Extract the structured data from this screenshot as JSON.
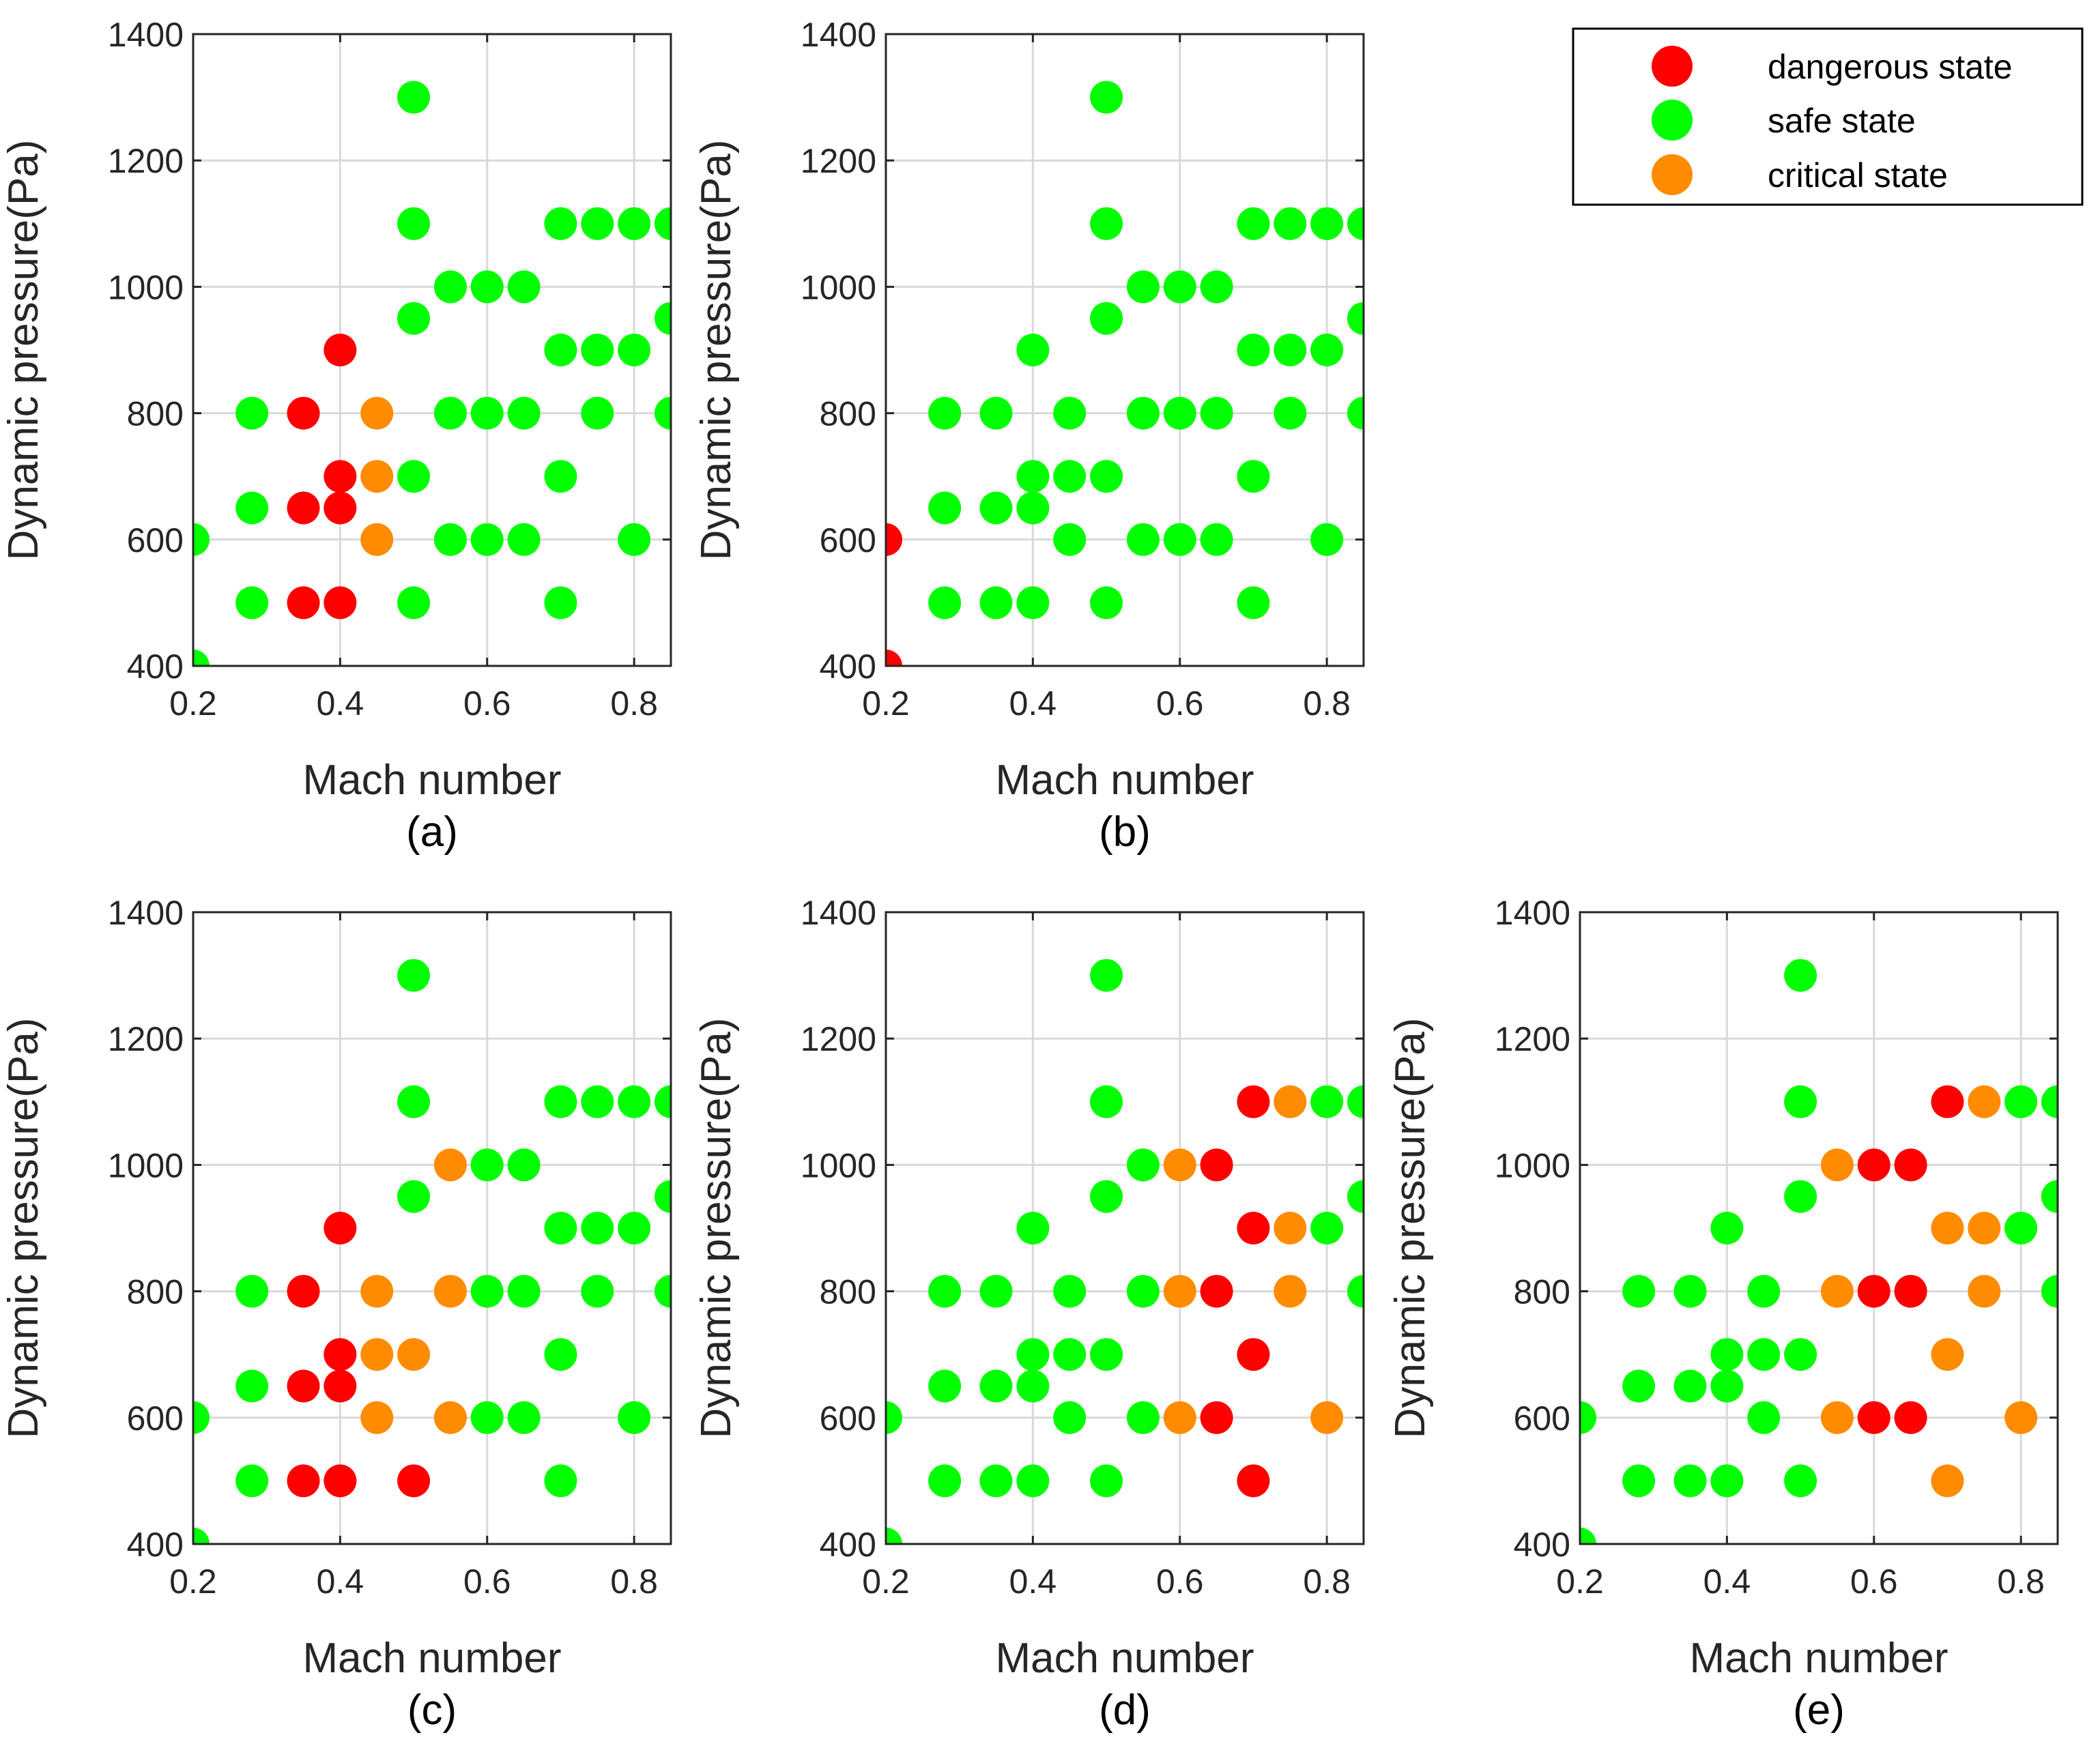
{
  "legend": {
    "items": [
      {
        "label": "dangerous state",
        "color": "#ff0000"
      },
      {
        "label": "safe state",
        "color": "#00ff00"
      },
      {
        "label": "critical state",
        "color": "#ff8c00"
      }
    ]
  },
  "colors": {
    "dangerous": "#ff0000",
    "safe": "#00ff00",
    "critical": "#ff8c00"
  },
  "chart_data": [
    {
      "type": "scatter",
      "panel": "(a)",
      "xlabel": "Mach number",
      "ylabel": "Dynamic pressure(Pa)",
      "xlim": [
        0.2,
        0.85
      ],
      "ylim": [
        400,
        1400
      ],
      "xticks": [
        "0.2",
        "0.4",
        "0.6",
        "0.8"
      ],
      "yticks": [
        "400",
        "600",
        "800",
        "1000",
        "1200",
        "1400"
      ],
      "points": [
        [
          0.2,
          400,
          "s"
        ],
        [
          0.2,
          600,
          "s"
        ],
        [
          0.28,
          500,
          "s"
        ],
        [
          0.28,
          650,
          "s"
        ],
        [
          0.28,
          800,
          "s"
        ],
        [
          0.35,
          500,
          "d"
        ],
        [
          0.35,
          650,
          "d"
        ],
        [
          0.35,
          800,
          "d"
        ],
        [
          0.4,
          500,
          "d"
        ],
        [
          0.4,
          650,
          "d"
        ],
        [
          0.4,
          700,
          "d"
        ],
        [
          0.4,
          900,
          "d"
        ],
        [
          0.45,
          600,
          "c"
        ],
        [
          0.45,
          700,
          "c"
        ],
        [
          0.45,
          800,
          "c"
        ],
        [
          0.5,
          500,
          "s"
        ],
        [
          0.5,
          700,
          "s"
        ],
        [
          0.5,
          950,
          "s"
        ],
        [
          0.5,
          1100,
          "s"
        ],
        [
          0.5,
          1300,
          "s"
        ],
        [
          0.55,
          600,
          "s"
        ],
        [
          0.55,
          800,
          "s"
        ],
        [
          0.55,
          1000,
          "s"
        ],
        [
          0.6,
          600,
          "s"
        ],
        [
          0.6,
          800,
          "s"
        ],
        [
          0.6,
          1000,
          "s"
        ],
        [
          0.65,
          600,
          "s"
        ],
        [
          0.65,
          800,
          "s"
        ],
        [
          0.65,
          1000,
          "s"
        ],
        [
          0.7,
          500,
          "s"
        ],
        [
          0.7,
          700,
          "s"
        ],
        [
          0.7,
          900,
          "s"
        ],
        [
          0.7,
          1100,
          "s"
        ],
        [
          0.75,
          800,
          "s"
        ],
        [
          0.75,
          900,
          "s"
        ],
        [
          0.75,
          1100,
          "s"
        ],
        [
          0.8,
          600,
          "s"
        ],
        [
          0.8,
          900,
          "s"
        ],
        [
          0.8,
          1100,
          "s"
        ],
        [
          0.85,
          800,
          "s"
        ],
        [
          0.85,
          950,
          "s"
        ],
        [
          0.85,
          1100,
          "s"
        ]
      ]
    },
    {
      "type": "scatter",
      "panel": "(b)",
      "xlabel": "Mach number",
      "ylabel": "Dynamic pressure(Pa)",
      "xlim": [
        0.2,
        0.85
      ],
      "ylim": [
        400,
        1400
      ],
      "xticks": [
        "0.2",
        "0.4",
        "0.6",
        "0.8"
      ],
      "yticks": [
        "400",
        "600",
        "800",
        "1000",
        "1200",
        "1400"
      ],
      "points": [
        [
          0.2,
          400,
          "d"
        ],
        [
          0.2,
          600,
          "d"
        ],
        [
          0.28,
          500,
          "s"
        ],
        [
          0.28,
          650,
          "s"
        ],
        [
          0.28,
          800,
          "s"
        ],
        [
          0.35,
          500,
          "s"
        ],
        [
          0.35,
          650,
          "s"
        ],
        [
          0.35,
          800,
          "s"
        ],
        [
          0.4,
          500,
          "s"
        ],
        [
          0.4,
          650,
          "s"
        ],
        [
          0.4,
          700,
          "s"
        ],
        [
          0.4,
          900,
          "s"
        ],
        [
          0.45,
          600,
          "s"
        ],
        [
          0.45,
          700,
          "s"
        ],
        [
          0.45,
          800,
          "s"
        ],
        [
          0.5,
          500,
          "s"
        ],
        [
          0.5,
          700,
          "s"
        ],
        [
          0.5,
          950,
          "s"
        ],
        [
          0.5,
          1100,
          "s"
        ],
        [
          0.5,
          1300,
          "s"
        ],
        [
          0.55,
          600,
          "s"
        ],
        [
          0.55,
          800,
          "s"
        ],
        [
          0.55,
          1000,
          "s"
        ],
        [
          0.6,
          600,
          "s"
        ],
        [
          0.6,
          800,
          "s"
        ],
        [
          0.6,
          1000,
          "s"
        ],
        [
          0.65,
          600,
          "s"
        ],
        [
          0.65,
          800,
          "s"
        ],
        [
          0.65,
          1000,
          "s"
        ],
        [
          0.7,
          500,
          "s"
        ],
        [
          0.7,
          700,
          "s"
        ],
        [
          0.7,
          900,
          "s"
        ],
        [
          0.7,
          1100,
          "s"
        ],
        [
          0.75,
          800,
          "s"
        ],
        [
          0.75,
          900,
          "s"
        ],
        [
          0.75,
          1100,
          "s"
        ],
        [
          0.8,
          600,
          "s"
        ],
        [
          0.8,
          900,
          "s"
        ],
        [
          0.8,
          1100,
          "s"
        ],
        [
          0.85,
          800,
          "s"
        ],
        [
          0.85,
          950,
          "s"
        ],
        [
          0.85,
          1100,
          "s"
        ]
      ]
    },
    {
      "type": "scatter",
      "panel": "(c)",
      "xlabel": "Mach number",
      "ylabel": "Dynamic pressure(Pa)",
      "xlim": [
        0.2,
        0.85
      ],
      "ylim": [
        400,
        1400
      ],
      "xticks": [
        "0.2",
        "0.4",
        "0.6",
        "0.8"
      ],
      "yticks": [
        "400",
        "600",
        "800",
        "1000",
        "1200",
        "1400"
      ],
      "points": [
        [
          0.2,
          400,
          "s"
        ],
        [
          0.2,
          600,
          "s"
        ],
        [
          0.28,
          500,
          "s"
        ],
        [
          0.28,
          650,
          "s"
        ],
        [
          0.28,
          800,
          "s"
        ],
        [
          0.35,
          500,
          "d"
        ],
        [
          0.35,
          650,
          "d"
        ],
        [
          0.35,
          800,
          "d"
        ],
        [
          0.4,
          500,
          "d"
        ],
        [
          0.4,
          650,
          "d"
        ],
        [
          0.4,
          700,
          "d"
        ],
        [
          0.4,
          900,
          "d"
        ],
        [
          0.45,
          600,
          "c"
        ],
        [
          0.45,
          700,
          "c"
        ],
        [
          0.45,
          800,
          "c"
        ],
        [
          0.5,
          500,
          "d"
        ],
        [
          0.5,
          700,
          "c"
        ],
        [
          0.5,
          950,
          "s"
        ],
        [
          0.5,
          1100,
          "s"
        ],
        [
          0.5,
          1300,
          "s"
        ],
        [
          0.55,
          600,
          "c"
        ],
        [
          0.55,
          800,
          "c"
        ],
        [
          0.55,
          1000,
          "c"
        ],
        [
          0.6,
          600,
          "s"
        ],
        [
          0.6,
          800,
          "s"
        ],
        [
          0.6,
          1000,
          "s"
        ],
        [
          0.65,
          600,
          "s"
        ],
        [
          0.65,
          800,
          "s"
        ],
        [
          0.65,
          1000,
          "s"
        ],
        [
          0.7,
          500,
          "s"
        ],
        [
          0.7,
          700,
          "s"
        ],
        [
          0.7,
          900,
          "s"
        ],
        [
          0.7,
          1100,
          "s"
        ],
        [
          0.75,
          800,
          "s"
        ],
        [
          0.75,
          900,
          "s"
        ],
        [
          0.75,
          1100,
          "s"
        ],
        [
          0.8,
          600,
          "s"
        ],
        [
          0.8,
          900,
          "s"
        ],
        [
          0.8,
          1100,
          "s"
        ],
        [
          0.85,
          800,
          "s"
        ],
        [
          0.85,
          950,
          "s"
        ],
        [
          0.85,
          1100,
          "s"
        ]
      ]
    },
    {
      "type": "scatter",
      "panel": "(d)",
      "xlabel": "Mach number",
      "ylabel": "Dynamic pressure(Pa)",
      "xlim": [
        0.2,
        0.85
      ],
      "ylim": [
        400,
        1400
      ],
      "xticks": [
        "0.2",
        "0.4",
        "0.6",
        "0.8"
      ],
      "yticks": [
        "400",
        "600",
        "800",
        "1000",
        "1200",
        "1400"
      ],
      "points": [
        [
          0.2,
          400,
          "s"
        ],
        [
          0.2,
          600,
          "s"
        ],
        [
          0.28,
          500,
          "s"
        ],
        [
          0.28,
          650,
          "s"
        ],
        [
          0.28,
          800,
          "s"
        ],
        [
          0.35,
          500,
          "s"
        ],
        [
          0.35,
          650,
          "s"
        ],
        [
          0.35,
          800,
          "s"
        ],
        [
          0.4,
          500,
          "s"
        ],
        [
          0.4,
          650,
          "s"
        ],
        [
          0.4,
          700,
          "s"
        ],
        [
          0.4,
          900,
          "s"
        ],
        [
          0.45,
          600,
          "s"
        ],
        [
          0.45,
          700,
          "s"
        ],
        [
          0.45,
          800,
          "s"
        ],
        [
          0.5,
          500,
          "s"
        ],
        [
          0.5,
          700,
          "s"
        ],
        [
          0.5,
          950,
          "s"
        ],
        [
          0.5,
          1100,
          "s"
        ],
        [
          0.5,
          1300,
          "s"
        ],
        [
          0.55,
          600,
          "s"
        ],
        [
          0.55,
          800,
          "s"
        ],
        [
          0.55,
          1000,
          "s"
        ],
        [
          0.6,
          600,
          "c"
        ],
        [
          0.6,
          800,
          "c"
        ],
        [
          0.6,
          1000,
          "c"
        ],
        [
          0.65,
          600,
          "d"
        ],
        [
          0.65,
          800,
          "d"
        ],
        [
          0.65,
          1000,
          "d"
        ],
        [
          0.7,
          500,
          "d"
        ],
        [
          0.7,
          700,
          "d"
        ],
        [
          0.7,
          900,
          "d"
        ],
        [
          0.7,
          1100,
          "d"
        ],
        [
          0.75,
          800,
          "c"
        ],
        [
          0.75,
          900,
          "c"
        ],
        [
          0.75,
          1100,
          "c"
        ],
        [
          0.8,
          600,
          "c"
        ],
        [
          0.8,
          900,
          "s"
        ],
        [
          0.8,
          1100,
          "s"
        ],
        [
          0.85,
          800,
          "s"
        ],
        [
          0.85,
          950,
          "s"
        ],
        [
          0.85,
          1100,
          "s"
        ]
      ]
    },
    {
      "type": "scatter",
      "panel": "(e)",
      "xlabel": "Mach number",
      "ylabel": "Dynamic pressure(Pa)",
      "xlim": [
        0.2,
        0.85
      ],
      "ylim": [
        400,
        1400
      ],
      "xticks": [
        "0.2",
        "0.4",
        "0.6",
        "0.8"
      ],
      "yticks": [
        "400",
        "600",
        "800",
        "1000",
        "1200",
        "1400"
      ],
      "points": [
        [
          0.2,
          400,
          "s"
        ],
        [
          0.2,
          600,
          "s"
        ],
        [
          0.28,
          500,
          "s"
        ],
        [
          0.28,
          650,
          "s"
        ],
        [
          0.28,
          800,
          "s"
        ],
        [
          0.35,
          500,
          "s"
        ],
        [
          0.35,
          650,
          "s"
        ],
        [
          0.35,
          800,
          "s"
        ],
        [
          0.4,
          500,
          "s"
        ],
        [
          0.4,
          650,
          "s"
        ],
        [
          0.4,
          700,
          "s"
        ],
        [
          0.4,
          900,
          "s"
        ],
        [
          0.45,
          600,
          "s"
        ],
        [
          0.45,
          700,
          "s"
        ],
        [
          0.45,
          800,
          "s"
        ],
        [
          0.5,
          500,
          "s"
        ],
        [
          0.5,
          700,
          "s"
        ],
        [
          0.5,
          950,
          "s"
        ],
        [
          0.5,
          1100,
          "s"
        ],
        [
          0.5,
          1300,
          "s"
        ],
        [
          0.55,
          600,
          "c"
        ],
        [
          0.55,
          800,
          "c"
        ],
        [
          0.55,
          1000,
          "c"
        ],
        [
          0.6,
          600,
          "d"
        ],
        [
          0.6,
          800,
          "d"
        ],
        [
          0.6,
          1000,
          "d"
        ],
        [
          0.65,
          600,
          "d"
        ],
        [
          0.65,
          800,
          "d"
        ],
        [
          0.65,
          1000,
          "d"
        ],
        [
          0.7,
          500,
          "c"
        ],
        [
          0.7,
          700,
          "c"
        ],
        [
          0.7,
          900,
          "c"
        ],
        [
          0.7,
          1100,
          "d"
        ],
        [
          0.75,
          800,
          "c"
        ],
        [
          0.75,
          900,
          "c"
        ],
        [
          0.75,
          1100,
          "c"
        ],
        [
          0.8,
          600,
          "c"
        ],
        [
          0.8,
          900,
          "s"
        ],
        [
          0.8,
          1100,
          "s"
        ],
        [
          0.85,
          800,
          "s"
        ],
        [
          0.85,
          950,
          "s"
        ],
        [
          0.85,
          1100,
          "s"
        ]
      ]
    }
  ]
}
